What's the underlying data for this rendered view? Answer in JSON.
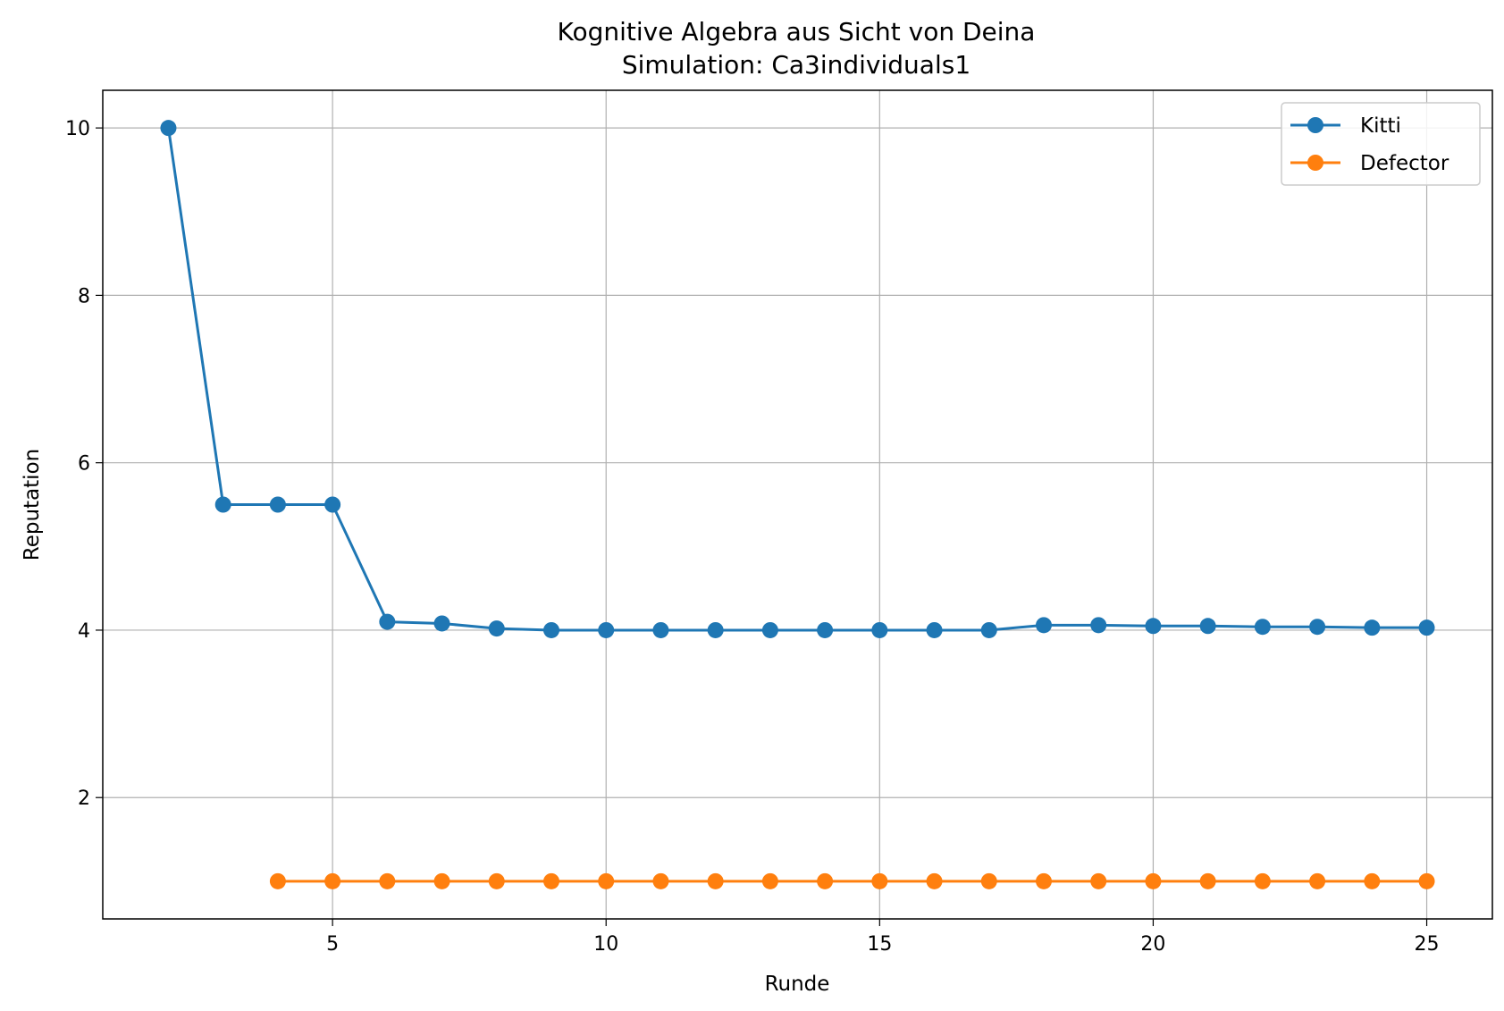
{
  "chart_data": {
    "type": "line",
    "title": "Kognitive Algebra aus Sicht von Deina",
    "subtitle": "Simulation: Ca3individuals1",
    "xlabel": "Runde",
    "ylabel": "Reputation",
    "xlim": [
      0.8,
      26.2
    ],
    "ylim": [
      0.55,
      10.45
    ],
    "xticks": [
      5,
      10,
      15,
      20,
      25
    ],
    "yticks": [
      2,
      4,
      6,
      8,
      10
    ],
    "grid": true,
    "legend_position": "top-right",
    "series": [
      {
        "name": "Kitti",
        "color": "#1f77b4",
        "marker": "circle",
        "x": [
          2,
          3,
          4,
          5,
          6,
          7,
          8,
          9,
          10,
          11,
          12,
          13,
          14,
          15,
          16,
          17,
          18,
          19,
          20,
          21,
          22,
          23,
          24,
          25
        ],
        "y": [
          10.0,
          5.5,
          5.5,
          5.5,
          4.1,
          4.08,
          4.02,
          4.0,
          4.0,
          4.0,
          4.0,
          4.0,
          4.0,
          4.0,
          4.0,
          4.0,
          4.06,
          4.06,
          4.05,
          4.05,
          4.04,
          4.04,
          4.03,
          4.03
        ]
      },
      {
        "name": "Defector",
        "color": "#ff7f0e",
        "marker": "circle",
        "x": [
          4,
          5,
          6,
          7,
          8,
          9,
          10,
          11,
          12,
          13,
          14,
          15,
          16,
          17,
          18,
          19,
          20,
          21,
          22,
          23,
          24,
          25
        ],
        "y": [
          1.0,
          1.0,
          1.0,
          1.0,
          1.0,
          1.0,
          1.0,
          1.0,
          1.0,
          1.0,
          1.0,
          1.0,
          1.0,
          1.0,
          1.0,
          1.0,
          1.0,
          1.0,
          1.0,
          1.0,
          1.0,
          1.0
        ]
      }
    ]
  }
}
